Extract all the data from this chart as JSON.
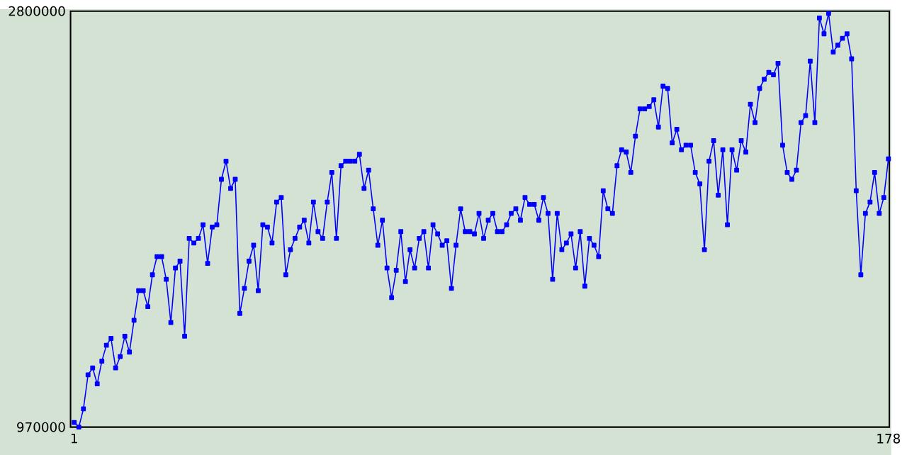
{
  "chart_data": {
    "type": "line",
    "x": [
      1,
      2,
      3,
      4,
      5,
      6,
      7,
      8,
      9,
      10,
      11,
      12,
      13,
      14,
      15,
      16,
      17,
      18,
      19,
      20,
      21,
      22,
      23,
      24,
      25,
      26,
      27,
      28,
      29,
      30,
      31,
      32,
      33,
      34,
      35,
      36,
      37,
      38,
      39,
      40,
      41,
      42,
      43,
      44,
      45,
      46,
      47,
      48,
      49,
      50,
      51,
      52,
      53,
      54,
      55,
      56,
      57,
      58,
      59,
      60,
      61,
      62,
      63,
      64,
      65,
      66,
      67,
      68,
      69,
      70,
      71,
      72,
      73,
      74,
      75,
      76,
      77,
      78,
      79,
      80,
      81,
      82,
      83,
      84,
      85,
      86,
      87,
      88,
      89,
      90,
      91,
      92,
      93,
      94,
      95,
      96,
      97,
      98,
      99,
      100,
      101,
      102,
      103,
      104,
      105,
      106,
      107,
      108,
      109,
      110,
      111,
      112,
      113,
      114,
      115,
      116,
      117,
      118,
      119,
      120,
      121,
      122,
      123,
      124,
      125,
      126,
      127,
      128,
      129,
      130,
      131,
      132,
      133,
      134,
      135,
      136,
      137,
      138,
      139,
      140,
      141,
      142,
      143,
      144,
      145,
      146,
      147,
      148,
      149,
      150,
      151,
      152,
      153,
      154,
      155,
      156,
      157,
      158,
      159,
      160,
      161,
      162,
      163,
      164,
      165,
      166,
      167,
      168,
      169,
      170,
      171,
      172,
      173,
      174,
      175,
      176,
      177,
      178
    ],
    "values": [
      990000,
      970000,
      1050000,
      1200000,
      1230000,
      1160000,
      1260000,
      1330000,
      1360000,
      1230000,
      1280000,
      1370000,
      1300000,
      1440000,
      1570000,
      1570000,
      1500000,
      1640000,
      1720000,
      1720000,
      1620000,
      1430000,
      1670000,
      1700000,
      1370000,
      1800000,
      1780000,
      1800000,
      1860000,
      1690000,
      1850000,
      1860000,
      2060000,
      2140000,
      2020000,
      2060000,
      1470000,
      1580000,
      1700000,
      1770000,
      1570000,
      1860000,
      1850000,
      1780000,
      1960000,
      1980000,
      1640000,
      1750000,
      1800000,
      1850000,
      1880000,
      1780000,
      1960000,
      1830000,
      1800000,
      1960000,
      2090000,
      1800000,
      2120000,
      2140000,
      2140000,
      2140000,
      2170000,
      2020000,
      2100000,
      1930000,
      1770000,
      1880000,
      1670000,
      1540000,
      1660000,
      1830000,
      1610000,
      1750000,
      1670000,
      1800000,
      1830000,
      1670000,
      1860000,
      1820000,
      1770000,
      1790000,
      1580000,
      1770000,
      1930000,
      1830000,
      1830000,
      1820000,
      1910000,
      1800000,
      1880000,
      1910000,
      1830000,
      1830000,
      1860000,
      1910000,
      1930000,
      1880000,
      1980000,
      1950000,
      1950000,
      1880000,
      1980000,
      1910000,
      1620000,
      1910000,
      1750000,
      1780000,
      1820000,
      1670000,
      1830000,
      1590000,
      1800000,
      1770000,
      1720000,
      2010000,
      1930000,
      1910000,
      2120000,
      2190000,
      2180000,
      2090000,
      2250000,
      2370000,
      2370000,
      2380000,
      2410000,
      2290000,
      2470000,
      2460000,
      2220000,
      2280000,
      2190000,
      2210000,
      2210000,
      2090000,
      2040000,
      1750000,
      2140000,
      2230000,
      1990000,
      2190000,
      1860000,
      2190000,
      2100000,
      2230000,
      2180000,
      2390000,
      2310000,
      2460000,
      2500000,
      2530000,
      2520000,
      2570000,
      2210000,
      2090000,
      2060000,
      2100000,
      2310000,
      2340000,
      2580000,
      2310000,
      2770000,
      2700000,
      2790000,
      2620000,
      2650000,
      2680000,
      2700000,
      2590000,
      2010000,
      1640000,
      1910000,
      1960000,
      2090000,
      1910000,
      1980000,
      2150000
    ],
    "color": "#0000ff",
    "marker": "square",
    "line_style": "solid",
    "xlim": [
      0.2,
      178.2
    ],
    "ylim": [
      970000,
      2800000
    ],
    "xticks": [
      1,
      178
    ],
    "yticks": [
      970000,
      2800000
    ],
    "grid": false
  }
}
